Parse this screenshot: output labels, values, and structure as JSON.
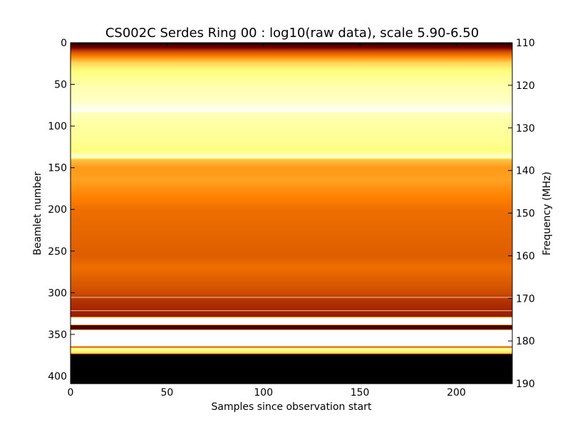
{
  "chart_data": {
    "type": "heatmap",
    "title": "CS002C Serdes Ring 00 : log10(raw data), scale 5.90-6.50",
    "xlabel": "Samples since observation start",
    "ylabel_left": "Beamlet number",
    "ylabel_right": "Frequency (MHz)",
    "xlim": [
      0,
      229
    ],
    "ylim_left": [
      0,
      409
    ],
    "ylim_right": [
      110,
      190
    ],
    "y_inverted": true,
    "color_scale": [
      5.9,
      6.5
    ],
    "colormap": "afmhot",
    "grid": false,
    "x_ticks": [
      "0",
      "50",
      "100",
      "150",
      "200"
    ],
    "y_ticks_left": [
      "0",
      "50",
      "100",
      "150",
      "200",
      "250",
      "300",
      "350",
      "400"
    ],
    "y_ticks_right": [
      "110",
      "120",
      "130",
      "140",
      "150",
      "160",
      "170",
      "180",
      "190"
    ],
    "beamlet_profile": [
      {
        "y": 0,
        "value": 5.93
      },
      {
        "y": 4,
        "value": 6.0
      },
      {
        "y": 10,
        "value": 6.13
      },
      {
        "y": 17,
        "value": 6.21
      },
      {
        "y": 24,
        "value": 6.3
      },
      {
        "y": 30,
        "value": 6.33
      },
      {
        "y": 40,
        "value": 6.37
      },
      {
        "y": 55,
        "value": 6.41
      },
      {
        "y": 70,
        "value": 6.43
      },
      {
        "y": 82,
        "value": 6.5
      },
      {
        "y": 84,
        "value": 6.42
      },
      {
        "y": 100,
        "value": 6.39
      },
      {
        "y": 120,
        "value": 6.37
      },
      {
        "y": 130,
        "value": 6.35
      },
      {
        "y": 137,
        "value": 6.45
      },
      {
        "y": 140,
        "value": 6.28
      },
      {
        "y": 150,
        "value": 6.23
      },
      {
        "y": 165,
        "value": 6.24
      },
      {
        "y": 180,
        "value": 6.21
      },
      {
        "y": 200,
        "value": 6.18
      },
      {
        "y": 230,
        "value": 6.17
      },
      {
        "y": 255,
        "value": 6.16
      },
      {
        "y": 270,
        "value": 6.18
      },
      {
        "y": 300,
        "value": 6.14
      },
      {
        "y": 310,
        "value": 6.11
      },
      {
        "y": 322,
        "value": 6.09
      },
      {
        "y": 329,
        "value": 6.08
      },
      {
        "y": 330,
        "value": 6.5
      },
      {
        "y": 338,
        "value": 6.5
      },
      {
        "y": 339,
        "value": 5.98
      },
      {
        "y": 344,
        "value": 5.98
      },
      {
        "y": 345,
        "value": 6.5
      },
      {
        "y": 364,
        "value": 6.5
      },
      {
        "y": 365,
        "value": 5.9
      },
      {
        "y": 366,
        "value": 6.4
      },
      {
        "y": 373,
        "value": 6.3
      },
      {
        "y": 374,
        "value": 5.9
      },
      {
        "y": 409,
        "value": 5.9
      }
    ],
    "saturated_rows": [
      82,
      137,
      305,
      321
    ],
    "saturated_bands": [
      [
        330,
        338
      ],
      [
        345,
        364
      ]
    ],
    "low_band": [
      374,
      409
    ]
  }
}
